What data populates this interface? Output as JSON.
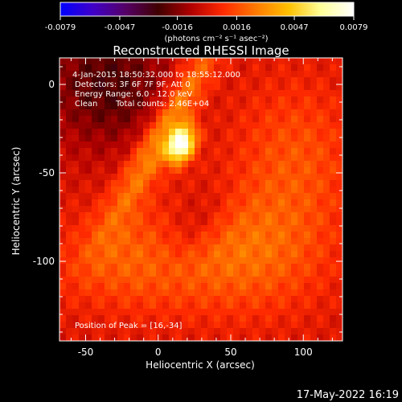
{
  "colorbar": {
    "tick_labels": [
      "-0.0079",
      "-0.0047",
      "-0.0016",
      "0.0016",
      "0.0047",
      "0.0079"
    ],
    "tick_values": [
      -0.0079,
      -0.0047,
      -0.0016,
      0.0016,
      0.0047,
      0.0079
    ],
    "range": [
      -0.0079,
      0.0079
    ],
    "unit_label": "(photons cm⁻² s⁻¹ asec⁻²)",
    "colormap": [
      "#0000ff",
      "#4000c8",
      "#550066",
      "#400000",
      "#b00000",
      "#ff2a00",
      "#ff7a00",
      "#ffc000",
      "#ffff9a",
      "#ffffff"
    ]
  },
  "chart_data": {
    "type": "heatmap",
    "title": "Reconstructed RHESSI Image",
    "xlabel": "Heliocentric X (arcsec)",
    "ylabel": "Heliocentric Y (arcsec)",
    "xlim": [
      -68,
      127
    ],
    "ylim": [
      -145,
      15
    ],
    "xticks": [
      -50,
      0,
      50,
      100
    ],
    "yticks": [
      0,
      -50,
      -100
    ],
    "xtick_labels": [
      "-50",
      "0",
      "50",
      "100"
    ],
    "ytick_labels": [
      "0",
      "-50",
      "-100"
    ],
    "info": {
      "time_range": "4-Jan-2015 18:50:32.000 to 18:55:12.000",
      "detectors": "Detectors: 3F 6F 7F 9F, Att 0",
      "energy": "Energy Range: 6.0 - 12.0 keV",
      "method": "Clean",
      "counts": "Total counts: 2.46E+04"
    },
    "peak": {
      "x": 16,
      "y": -34,
      "label": "Position of Peak = [16,-34]"
    },
    "sources": [
      {
        "x": 16,
        "y": -34,
        "amplitude": 0.0079,
        "sigma_major": 8,
        "sigma_minor": 6,
        "angle_deg": 50
      },
      {
        "x": 5,
        "y": -25,
        "amplitude": 0.0034,
        "sigma_major": 45,
        "sigma_minor": 8,
        "angle_deg": 55
      },
      {
        "x": 60,
        "y": -95,
        "amplitude": 0.0022,
        "sigma_major": 40,
        "sigma_minor": 25,
        "angle_deg": 0
      },
      {
        "x": -20,
        "y": -100,
        "amplitude": 0.0018,
        "sigma_major": 35,
        "sigma_minor": 20,
        "angle_deg": 0
      },
      {
        "x": 95,
        "y": -40,
        "amplitude": 0.0016,
        "sigma_major": 30,
        "sigma_minor": 30,
        "angle_deg": 0
      }
    ],
    "negative_regions": [
      {
        "x": -35,
        "y": 0,
        "amplitude": -0.0025,
        "sigma_major": 30,
        "sigma_minor": 25,
        "angle_deg": 0
      },
      {
        "x": 25,
        "y": -80,
        "amplitude": -0.0015,
        "sigma_major": 20,
        "sigma_minor": 12,
        "angle_deg": 40
      }
    ]
  },
  "footer": {
    "date": "17-May-2022 16:19"
  }
}
